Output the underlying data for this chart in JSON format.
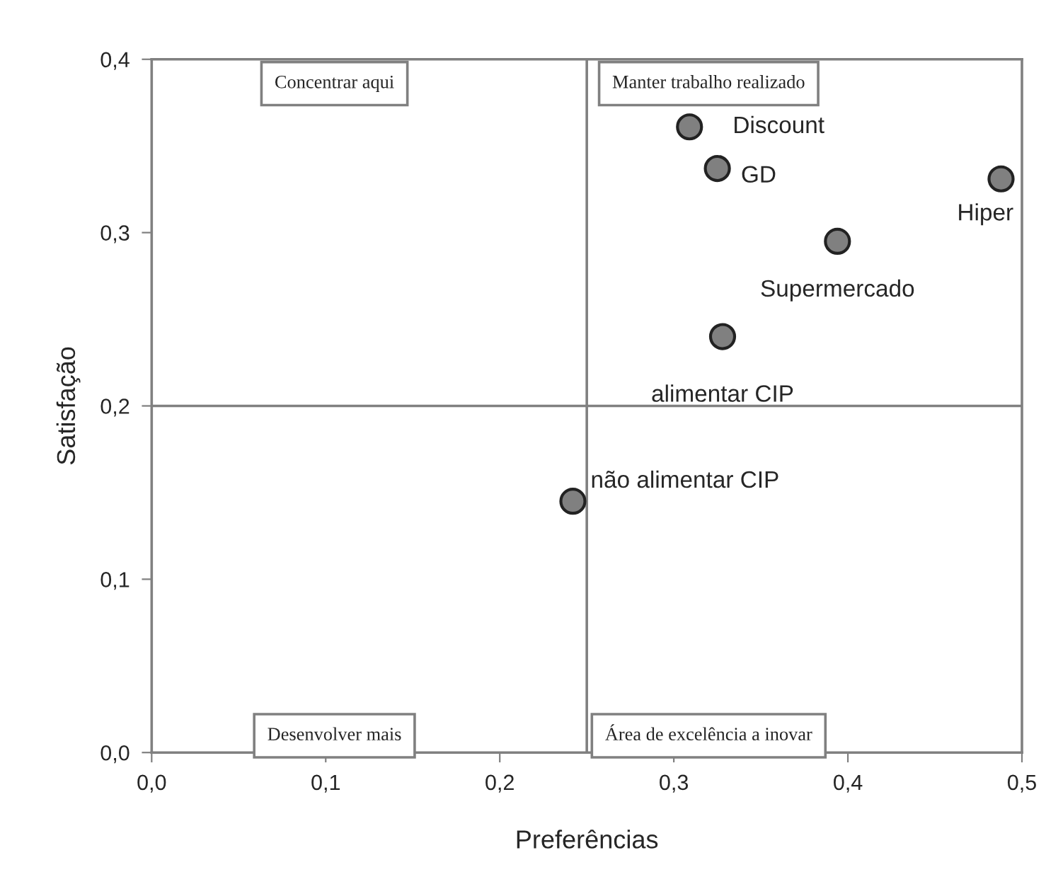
{
  "chart_data": {
    "type": "scatter",
    "xlabel": "Preferências",
    "ylabel": "Satisfação",
    "x": [
      0.309,
      0.325,
      0.488,
      0.394,
      0.328,
      0.242
    ],
    "series": [
      {
        "color": "#808080",
        "values": [
          0.361,
          0.337,
          0.331,
          0.295,
          0.24,
          0.145
        ]
      }
    ],
    "marker": "circle",
    "xlim": [
      0,
      0.5
    ],
    "ylim": [
      0,
      0.4
    ],
    "xticks": [
      {
        "value": 0,
        "label": "0,0"
      },
      {
        "value": 0.1,
        "label": "0,1"
      },
      {
        "value": 0.2,
        "label": "0,2"
      },
      {
        "value": 0.3,
        "label": "0,3"
      },
      {
        "value": 0.4,
        "label": "0,4"
      },
      {
        "value": 0.5,
        "label": "0,5"
      }
    ],
    "yticks": [
      {
        "value": 0,
        "label": "0,0"
      },
      {
        "value": 0.1,
        "label": "0,1"
      },
      {
        "value": 0.2,
        "label": "0,2"
      },
      {
        "value": 0.3,
        "label": "0,3"
      },
      {
        "value": 0.4,
        "label": "0,4"
      }
    ],
    "ref_lines": [
      {
        "axis": "x",
        "value": 0.25,
        "color": "#808080"
      },
      {
        "axis": "y",
        "value": 0.2,
        "color": "#808080"
      }
    ],
    "grid": false,
    "legend": false,
    "annotations": [
      {
        "text": "Discount",
        "x": 0.309,
        "y": 0.361
      },
      {
        "text": "GD",
        "x": 0.325,
        "y": 0.337
      },
      {
        "text": "Hiper",
        "x": 0.488,
        "y": 0.331
      },
      {
        "text": "Supermercado",
        "x": 0.394,
        "y": 0.295
      },
      {
        "text": "alimentar CIP",
        "x": 0.328,
        "y": 0.24
      },
      {
        "text": "não alimentar CIP",
        "x": 0.242,
        "y": 0.145
      },
      "Concentrar aqui",
      "Manter trabalho realizado",
      "Desenvolver mais",
      "Área de excelência a inovar"
    ]
  }
}
